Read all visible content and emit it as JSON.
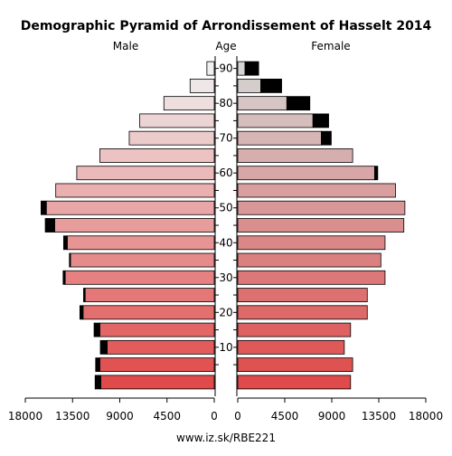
{
  "chart_data": {
    "type": "bar",
    "title": "Demographic Pyramid of Arrondissement of Hasselt 2014",
    "left_label": "Male",
    "center_label": "Age",
    "right_label": "Female",
    "footer": "www.iz.sk/RBE221",
    "x_ticks_left": [
      "18000",
      "13500",
      "9000",
      "4500",
      "0"
    ],
    "x_ticks_right": [
      "0",
      "4500",
      "9000",
      "13500",
      "18000"
    ],
    "x_max": 18000,
    "age_ticks": [
      "10",
      "20",
      "30",
      "40",
      "50",
      "60",
      "70",
      "80",
      "90"
    ],
    "age_groups": [
      "0-4",
      "5-9",
      "10-14",
      "15-19",
      "20-24",
      "25-29",
      "30-34",
      "35-39",
      "40-44",
      "45-49",
      "50-54",
      "55-59",
      "60-64",
      "65-69",
      "70-74",
      "75-79",
      "80-84",
      "85-89",
      "90+"
    ],
    "male_native": [
      10800,
      10900,
      10200,
      10900,
      12500,
      12300,
      14200,
      13700,
      14000,
      15200,
      16000,
      15100,
      13100,
      10900,
      8100,
      7100,
      4800,
      2300,
      700
    ],
    "male_foreign": [
      550,
      400,
      650,
      550,
      300,
      150,
      200,
      100,
      350,
      900,
      500,
      0,
      0,
      0,
      0,
      0,
      0,
      0,
      0
    ],
    "female_native": [
      10800,
      11000,
      10200,
      10800,
      12400,
      12400,
      14100,
      13700,
      14100,
      15900,
      16000,
      15100,
      13100,
      11000,
      8000,
      7200,
      4700,
      2200,
      700
    ],
    "female_foreign": [
      0,
      0,
      0,
      0,
      0,
      0,
      0,
      0,
      0,
      0,
      0,
      0,
      300,
      0,
      950,
      1500,
      2200,
      2000,
      1300
    ],
    "colors": {
      "foreign": "#000000",
      "male_young": "#e04a4a",
      "male_old": "#f0f0f0",
      "female_young": "#e04a4a",
      "female_old": "#d4d4d4"
    }
  }
}
